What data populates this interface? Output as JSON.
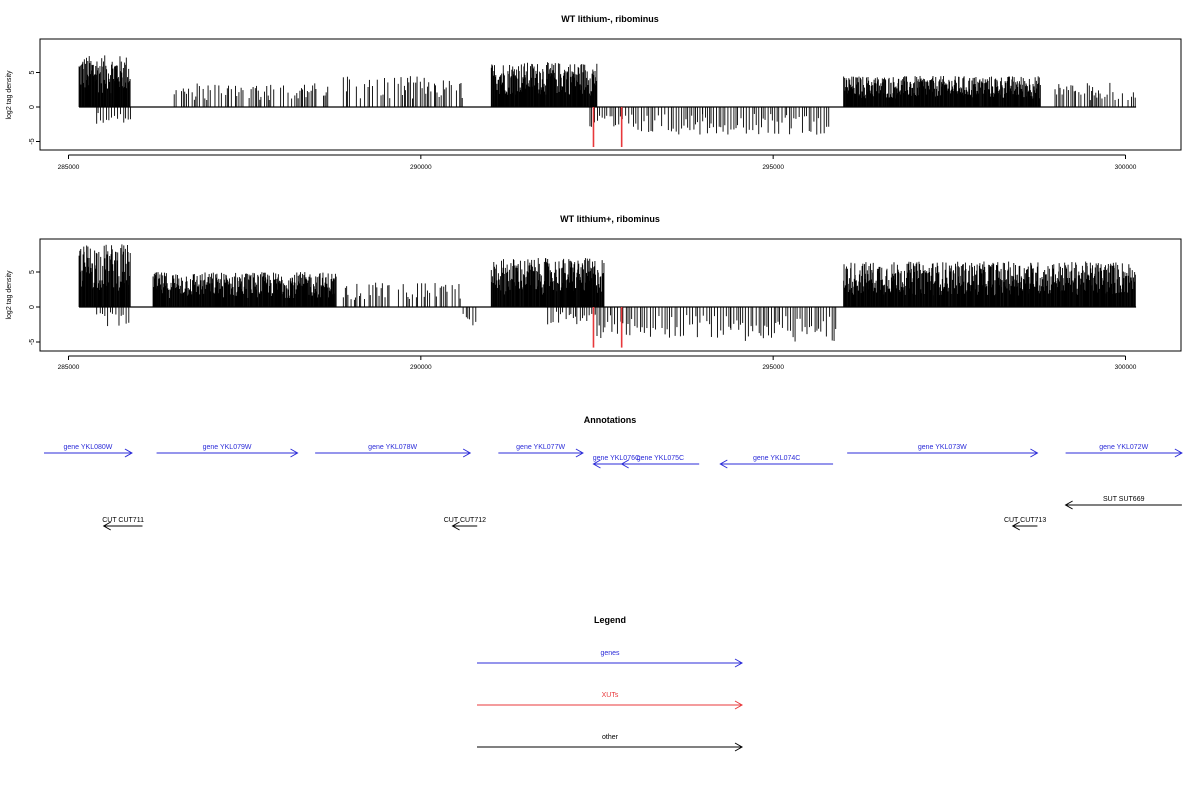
{
  "chart_data": [
    {
      "type": "bar",
      "title": "WT lithium-, ribominus",
      "xlabel": "",
      "ylabel": "log2 tag density",
      "xlim": [
        285000,
        300500
      ],
      "ylim": [
        -6,
        10
      ],
      "xticks": [
        285000,
        290000,
        295000,
        300000
      ],
      "yticks": [
        -5,
        0,
        5
      ],
      "grid": false,
      "positive_regions": [
        {
          "start": 285150,
          "end": 285880,
          "max": 7.5,
          "density": "high"
        },
        {
          "start": 286500,
          "end": 288700,
          "max": 3.5,
          "density": "low"
        },
        {
          "start": 288900,
          "end": 290600,
          "max": 4.5,
          "density": "low"
        },
        {
          "start": 291000,
          "end": 292500,
          "max": 6.5,
          "density": "high"
        },
        {
          "start": 296000,
          "end": 298800,
          "max": 4.5,
          "density": "high"
        },
        {
          "start": 299000,
          "end": 300150,
          "max": 3.5,
          "density": "low"
        }
      ],
      "negative_regions": [
        {
          "start": 285400,
          "end": 285900,
          "min": -2.5
        },
        {
          "start": 292400,
          "end": 294000,
          "min": -4.0
        },
        {
          "start": 294000,
          "end": 295800,
          "min": -4.0
        }
      ],
      "highlight_bars": [
        {
          "x": 292450,
          "y": -5.8,
          "color": "#e8383b"
        },
        {
          "x": 292850,
          "y": -5.8,
          "color": "#e8383b"
        }
      ]
    },
    {
      "type": "bar",
      "title": "WT lithium+, ribominus",
      "xlabel": "",
      "ylabel": "log2 tag density",
      "xlim": [
        285000,
        300500
      ],
      "ylim": [
        -6,
        10
      ],
      "xticks": [
        285000,
        290000,
        295000,
        300000
      ],
      "yticks": [
        -5,
        0,
        5
      ],
      "grid": false,
      "positive_regions": [
        {
          "start": 285150,
          "end": 285880,
          "max": 9.0,
          "density": "high"
        },
        {
          "start": 286200,
          "end": 288800,
          "max": 5.0,
          "density": "high"
        },
        {
          "start": 288900,
          "end": 290600,
          "max": 3.5,
          "density": "low"
        },
        {
          "start": 291000,
          "end": 292600,
          "max": 7.0,
          "density": "high"
        },
        {
          "start": 296000,
          "end": 300150,
          "max": 6.5,
          "density": "high"
        }
      ],
      "negative_regions": [
        {
          "start": 285400,
          "end": 285900,
          "min": -3.0
        },
        {
          "start": 290600,
          "end": 290800,
          "min": -3.0
        },
        {
          "start": 291800,
          "end": 292500,
          "min": -2.5
        },
        {
          "start": 292500,
          "end": 294400,
          "min": -4.5
        },
        {
          "start": 294400,
          "end": 295900,
          "min": -5.0
        }
      ],
      "highlight_bars": [
        {
          "x": 292450,
          "y": -5.8,
          "color": "#e8383b"
        },
        {
          "x": 292850,
          "y": -5.8,
          "color": "#e8383b"
        }
      ]
    }
  ],
  "annotations": {
    "title": "Annotations",
    "features": [
      {
        "label": "gene YKL080W",
        "type": "genes",
        "strand": "+",
        "start": 284650,
        "end": 285900,
        "row": 0
      },
      {
        "label": "gene YKL079W",
        "type": "genes",
        "strand": "+",
        "start": 286250,
        "end": 288250,
        "row": 0
      },
      {
        "label": "gene YKL078W",
        "type": "genes",
        "strand": "+",
        "start": 288500,
        "end": 290700,
        "row": 0
      },
      {
        "label": "gene YKL077W",
        "type": "genes",
        "strand": "+",
        "start": 291100,
        "end": 292300,
        "row": 0
      },
      {
        "label": "gene YKL076C",
        "type": "genes",
        "strand": "-",
        "start": 292450,
        "end": 293100,
        "row": 1
      },
      {
        "label": "gene YKL075C",
        "type": "genes",
        "strand": "-",
        "start": 292850,
        "end": 293950,
        "row": 1
      },
      {
        "label": "gene YKL074C",
        "type": "genes",
        "strand": "-",
        "start": 294250,
        "end": 295850,
        "row": 1
      },
      {
        "label": "gene YKL073W",
        "type": "genes",
        "strand": "+",
        "start": 296050,
        "end": 298750,
        "row": 0
      },
      {
        "label": "gene YKL072W",
        "type": "genes",
        "strand": "+",
        "start": 299150,
        "end": 300800,
        "row": 0
      },
      {
        "label": "SUT SUT669",
        "type": "other",
        "strand": "-",
        "start": 299150,
        "end": 300800,
        "row": 2
      },
      {
        "label": "CUT CUT711",
        "type": "other",
        "strand": "-",
        "start": 285500,
        "end": 286050,
        "row": 3
      },
      {
        "label": "CUT CUT712",
        "type": "other",
        "strand": "-",
        "start": 290450,
        "end": 290800,
        "row": 3
      },
      {
        "label": "CUT CUT713",
        "type": "other",
        "strand": "-",
        "start": 298400,
        "end": 298750,
        "row": 3
      }
    ]
  },
  "legend": {
    "title": "Legend",
    "entries": [
      {
        "label": "genes",
        "color": "#2b2bd8"
      },
      {
        "label": "XUTs",
        "color": "#e8383b"
      },
      {
        "label": "other",
        "color": "#000000"
      }
    ]
  }
}
